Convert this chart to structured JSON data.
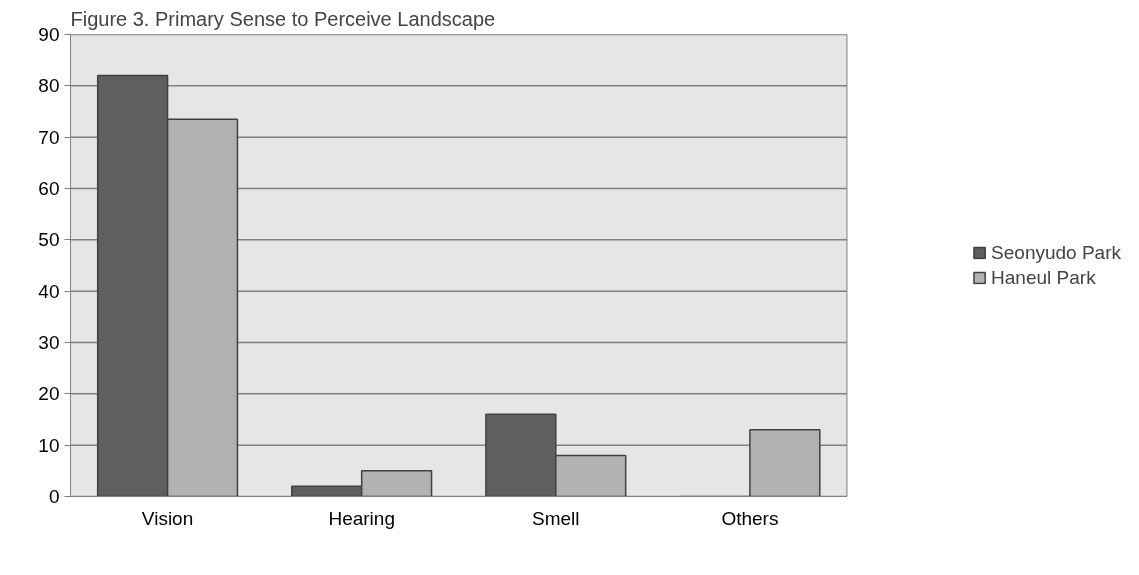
{
  "chart_data": {
    "type": "bar",
    "title": "Figure 3. Primary Sense to Perceive Landscape",
    "categories": [
      "Vision",
      "Hearing",
      "Smell",
      "Others"
    ],
    "series": [
      {
        "name": "Seonyudo Park",
        "color": "#5f5f5f",
        "values": [
          82,
          2,
          16,
          0
        ]
      },
      {
        "name": "Haneul Park",
        "color": "#b2b2b2",
        "values": [
          73.5,
          5,
          8,
          13
        ]
      }
    ],
    "ylim": [
      0,
      90
    ],
    "yticks": [
      0,
      10,
      20,
      30,
      40,
      50,
      60,
      70,
      80,
      90
    ],
    "grid": "y",
    "legend": "right"
  }
}
